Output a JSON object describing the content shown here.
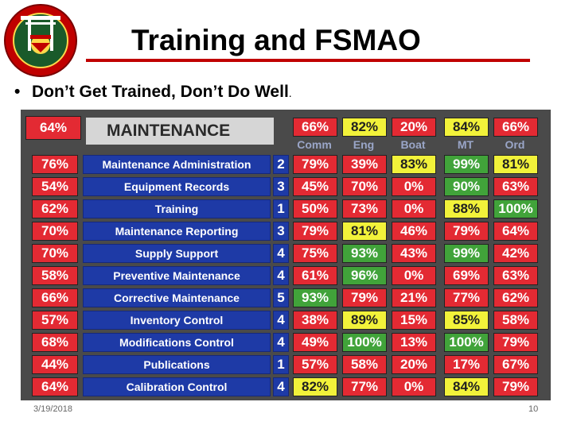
{
  "slide": {
    "title": "Training and FSMAO",
    "bullet": "Don’t Get Trained, Don’t Do Well",
    "bullet_end": ".",
    "footer_date": "3/19/2018",
    "page_number": "10"
  },
  "logo": {
    "icon": "usmc-seal-icon",
    "color": "#c00000"
  },
  "board": {
    "overall": {
      "value": "64%",
      "color": "red"
    },
    "heading": "MAINTENANCE",
    "columns": [
      {
        "name": "Comm",
        "overall": "66%",
        "color": "red"
      },
      {
        "name": "Eng",
        "overall": "82%",
        "color": "yellow"
      },
      {
        "name": "Boat",
        "overall": "20%",
        "color": "red"
      },
      {
        "name": "MT",
        "overall": "84%",
        "color": "yellow"
      },
      {
        "name": "Ord",
        "overall": "66%",
        "color": "red"
      }
    ],
    "rows": [
      {
        "score": "76%",
        "name": "Maintenance Administration",
        "weight": "2",
        "cells": [
          {
            "v": "79%",
            "c": "red"
          },
          {
            "v": "39%",
            "c": "red"
          },
          {
            "v": "83%",
            "c": "yellow"
          },
          {
            "v": "99%",
            "c": "green"
          },
          {
            "v": "81%",
            "c": "yellow"
          }
        ]
      },
      {
        "score": "54%",
        "name": "Equipment Records",
        "weight": "3",
        "cells": [
          {
            "v": "45%",
            "c": "red"
          },
          {
            "v": "70%",
            "c": "red"
          },
          {
            "v": "0%",
            "c": "red"
          },
          {
            "v": "90%",
            "c": "green"
          },
          {
            "v": "63%",
            "c": "red"
          }
        ]
      },
      {
        "score": "62%",
        "name": "Training",
        "weight": "1",
        "cells": [
          {
            "v": "50%",
            "c": "red"
          },
          {
            "v": "73%",
            "c": "red"
          },
          {
            "v": "0%",
            "c": "red"
          },
          {
            "v": "88%",
            "c": "yellow"
          },
          {
            "v": "100%",
            "c": "green"
          }
        ]
      },
      {
        "score": "70%",
        "name": "Maintenance Reporting",
        "weight": "3",
        "cells": [
          {
            "v": "79%",
            "c": "red"
          },
          {
            "v": "81%",
            "c": "yellow"
          },
          {
            "v": "46%",
            "c": "red"
          },
          {
            "v": "79%",
            "c": "red"
          },
          {
            "v": "64%",
            "c": "red"
          }
        ]
      },
      {
        "score": "70%",
        "name": "Supply Support",
        "weight": "4",
        "cells": [
          {
            "v": "75%",
            "c": "red"
          },
          {
            "v": "93%",
            "c": "green"
          },
          {
            "v": "43%",
            "c": "red"
          },
          {
            "v": "99%",
            "c": "green"
          },
          {
            "v": "42%",
            "c": "red"
          }
        ]
      },
      {
        "score": "58%",
        "name": "Preventive Maintenance",
        "weight": "4",
        "cells": [
          {
            "v": "61%",
            "c": "red"
          },
          {
            "v": "96%",
            "c": "green"
          },
          {
            "v": "0%",
            "c": "red"
          },
          {
            "v": "69%",
            "c": "red"
          },
          {
            "v": "63%",
            "c": "red"
          }
        ]
      },
      {
        "score": "66%",
        "name": "Corrective Maintenance",
        "weight": "5",
        "cells": [
          {
            "v": "93%",
            "c": "green"
          },
          {
            "v": "79%",
            "c": "red"
          },
          {
            "v": "21%",
            "c": "red"
          },
          {
            "v": "77%",
            "c": "red"
          },
          {
            "v": "62%",
            "c": "red"
          }
        ]
      },
      {
        "score": "57%",
        "name": "Inventory Control",
        "weight": "4",
        "cells": [
          {
            "v": "38%",
            "c": "red"
          },
          {
            "v": "89%",
            "c": "yellow"
          },
          {
            "v": "15%",
            "c": "red"
          },
          {
            "v": "85%",
            "c": "yellow"
          },
          {
            "v": "58%",
            "c": "red"
          }
        ]
      },
      {
        "score": "68%",
        "name": "Modifications Control",
        "weight": "4",
        "cells": [
          {
            "v": "49%",
            "c": "red"
          },
          {
            "v": "100%",
            "c": "green"
          },
          {
            "v": "13%",
            "c": "red"
          },
          {
            "v": "100%",
            "c": "green"
          },
          {
            "v": "79%",
            "c": "red"
          }
        ]
      },
      {
        "score": "44%",
        "name": "Publications",
        "weight": "1",
        "cells": [
          {
            "v": "57%",
            "c": "red"
          },
          {
            "v": "58%",
            "c": "red"
          },
          {
            "v": "20%",
            "c": "red"
          },
          {
            "v": "17%",
            "c": "red"
          },
          {
            "v": "67%",
            "c": "red"
          }
        ]
      },
      {
        "score": "64%",
        "name": "Calibration Control",
        "weight": "4",
        "cells": [
          {
            "v": "82%",
            "c": "yellow"
          },
          {
            "v": "77%",
            "c": "red"
          },
          {
            "v": "0%",
            "c": "red"
          },
          {
            "v": "84%",
            "c": "yellow"
          },
          {
            "v": "79%",
            "c": "red"
          }
        ]
      }
    ]
  }
}
